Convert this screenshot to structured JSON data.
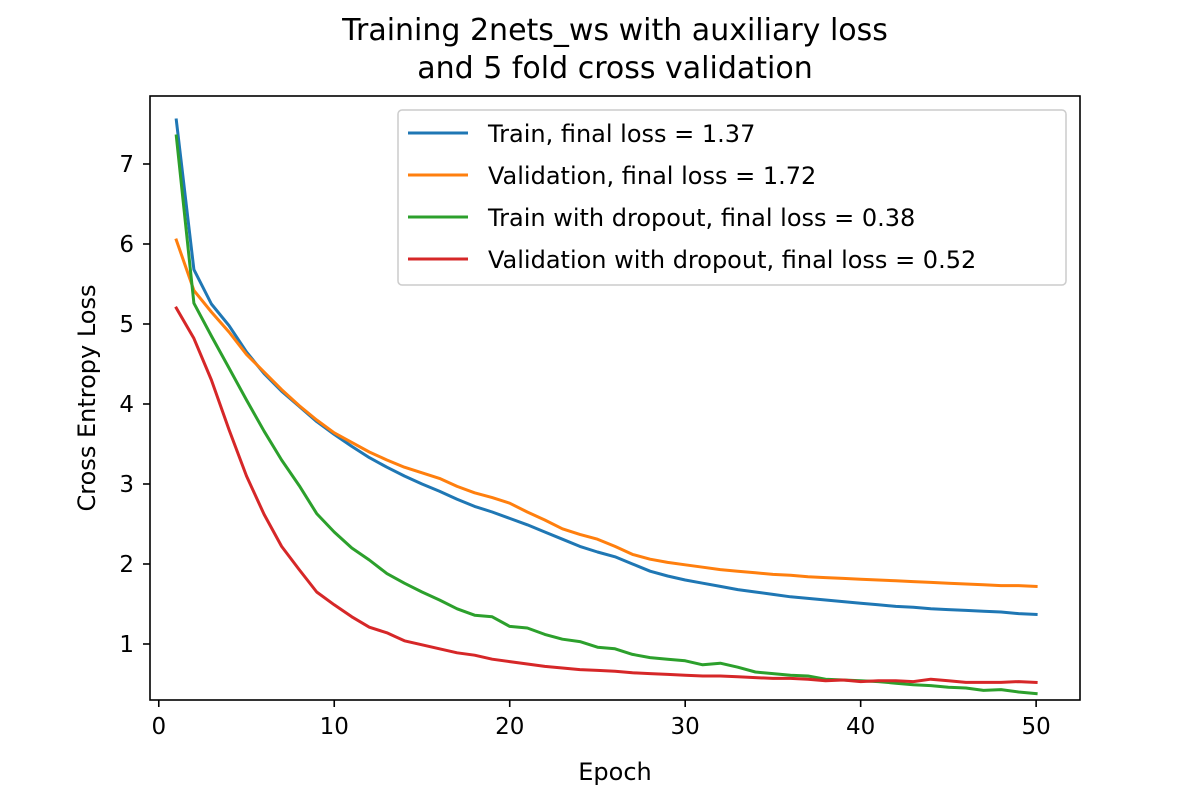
{
  "chart_data": {
    "type": "line",
    "title": "Training 2nets_ws with auxiliary loss",
    "subtitle": "and 5 fold cross validation",
    "xlabel": "Epoch",
    "ylabel": "Cross Entropy Loss",
    "xlim": [
      -0.5,
      52.5
    ],
    "ylim": [
      0.3,
      7.85
    ],
    "xticks": [
      0,
      10,
      20,
      30,
      40,
      50
    ],
    "yticks": [
      1,
      2,
      3,
      4,
      5,
      6,
      7
    ],
    "grid": false,
    "legend_position": "top-right",
    "x": [
      1,
      2,
      3,
      4,
      5,
      6,
      7,
      8,
      9,
      10,
      11,
      12,
      13,
      14,
      15,
      16,
      17,
      18,
      19,
      20,
      21,
      22,
      23,
      24,
      25,
      26,
      27,
      28,
      29,
      30,
      31,
      32,
      33,
      34,
      35,
      36,
      37,
      38,
      39,
      40,
      41,
      42,
      43,
      44,
      45,
      46,
      47,
      48,
      49,
      50
    ],
    "series": [
      {
        "name": "Train, final loss = 1.37",
        "color": "#1f77b4",
        "values": [
          7.55,
          5.68,
          5.25,
          4.98,
          4.65,
          4.38,
          4.16,
          3.97,
          3.78,
          3.62,
          3.47,
          3.33,
          3.21,
          3.1,
          3.0,
          2.91,
          2.81,
          2.72,
          2.65,
          2.57,
          2.49,
          2.4,
          2.31,
          2.22,
          2.15,
          2.09,
          2.0,
          1.91,
          1.85,
          1.8,
          1.76,
          1.72,
          1.68,
          1.65,
          1.62,
          1.59,
          1.57,
          1.55,
          1.53,
          1.51,
          1.49,
          1.47,
          1.46,
          1.44,
          1.43,
          1.42,
          1.41,
          1.4,
          1.38,
          1.37
        ]
      },
      {
        "name": "Validation, final loss = 1.72",
        "color": "#ff7f0e",
        "values": [
          6.05,
          5.42,
          5.15,
          4.9,
          4.62,
          4.4,
          4.18,
          3.98,
          3.8,
          3.64,
          3.52,
          3.4,
          3.3,
          3.21,
          3.14,
          3.07,
          2.97,
          2.89,
          2.83,
          2.76,
          2.65,
          2.55,
          2.44,
          2.37,
          2.31,
          2.22,
          2.12,
          2.06,
          2.02,
          1.99,
          1.96,
          1.93,
          1.91,
          1.89,
          1.87,
          1.86,
          1.84,
          1.83,
          1.82,
          1.81,
          1.8,
          1.79,
          1.78,
          1.77,
          1.76,
          1.75,
          1.74,
          1.73,
          1.73,
          1.72
        ]
      },
      {
        "name": "Train with dropout, final loss = 0.38",
        "color": "#2ca02c",
        "values": [
          7.35,
          5.26,
          4.85,
          4.45,
          4.05,
          3.66,
          3.3,
          2.98,
          2.63,
          2.4,
          2.2,
          2.05,
          1.88,
          1.76,
          1.65,
          1.55,
          1.44,
          1.36,
          1.34,
          1.22,
          1.2,
          1.12,
          1.06,
          1.03,
          0.96,
          0.94,
          0.87,
          0.83,
          0.81,
          0.79,
          0.74,
          0.76,
          0.71,
          0.65,
          0.63,
          0.61,
          0.6,
          0.56,
          0.55,
          0.54,
          0.53,
          0.51,
          0.49,
          0.48,
          0.46,
          0.45,
          0.42,
          0.43,
          0.4,
          0.38
        ]
      },
      {
        "name": "Validation with dropout, final loss = 0.52",
        "color": "#d62728",
        "values": [
          5.2,
          4.82,
          4.3,
          3.68,
          3.1,
          2.62,
          2.22,
          1.93,
          1.65,
          1.49,
          1.34,
          1.21,
          1.14,
          1.04,
          0.99,
          0.94,
          0.89,
          0.86,
          0.81,
          0.78,
          0.75,
          0.72,
          0.7,
          0.68,
          0.67,
          0.66,
          0.64,
          0.63,
          0.62,
          0.61,
          0.6,
          0.6,
          0.59,
          0.58,
          0.57,
          0.57,
          0.56,
          0.54,
          0.55,
          0.53,
          0.54,
          0.54,
          0.53,
          0.56,
          0.54,
          0.52,
          0.52,
          0.52,
          0.53,
          0.52
        ]
      }
    ]
  }
}
